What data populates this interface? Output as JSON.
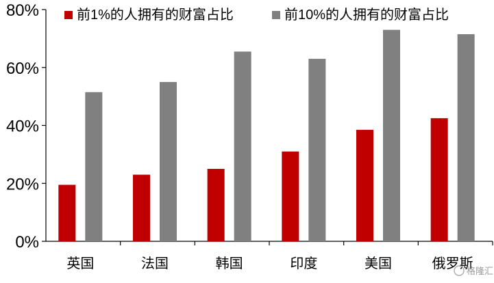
{
  "chart_data": {
    "type": "bar",
    "categories": [
      "英国",
      "法国",
      "韩国",
      "印度",
      "美国",
      "俄罗斯"
    ],
    "series": [
      {
        "name": "前1%的人拥有的财富占比",
        "color": "#c00000",
        "values": [
          19.5,
          23,
          25,
          31,
          38.5,
          42.5
        ]
      },
      {
        "name": "前10%的人拥有的财富占比",
        "color": "#808080",
        "values": [
          51.5,
          55,
          65.5,
          63,
          73,
          71.5
        ]
      }
    ],
    "y_ticks": [
      "0%",
      "20%",
      "40%",
      "60%",
      "80%"
    ],
    "ylim": [
      0,
      80
    ],
    "grid": false,
    "legend_position": "top"
  },
  "watermark": "格隆汇"
}
